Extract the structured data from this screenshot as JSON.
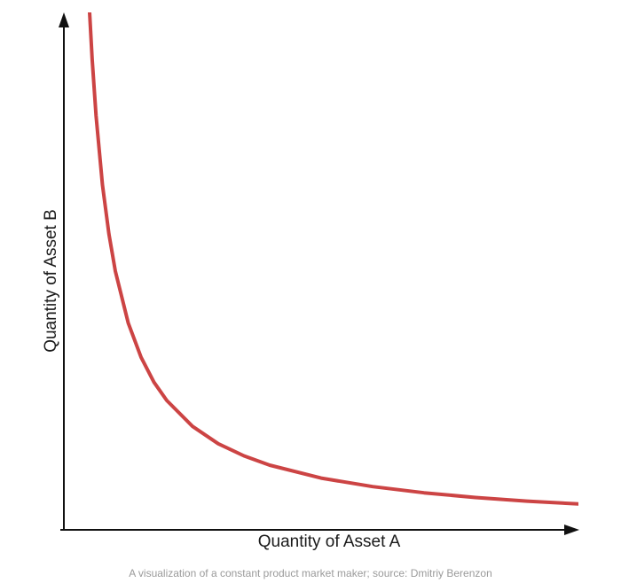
{
  "caption": "A visualization of a constant product market maker; source: Dmitriy Berenzon",
  "chart_data": {
    "type": "line",
    "title": "",
    "xlabel": "Quantity of Asset A",
    "ylabel": "Quantity of Asset B",
    "ticks_shown": false,
    "grid": false,
    "legend": "none",
    "xlim": [
      0,
      20
    ],
    "ylim": [
      0,
      20
    ],
    "series": [
      {
        "color": "#cc4444",
        "x": [
          1.0,
          1.1,
          1.25,
          1.5,
          1.75,
          2.0,
          2.5,
          3.0,
          3.5,
          4.0,
          5.0,
          6.0,
          7.0,
          8.0,
          10.0,
          12.0,
          14.0,
          16.0,
          18.0,
          20.0
        ],
        "y": [
          20.0,
          18.18,
          16.0,
          13.33,
          11.43,
          10.0,
          8.0,
          6.67,
          5.71,
          5.0,
          4.0,
          3.33,
          2.86,
          2.5,
          2.0,
          1.67,
          1.43,
          1.25,
          1.11,
          1.0
        ]
      }
    ]
  }
}
